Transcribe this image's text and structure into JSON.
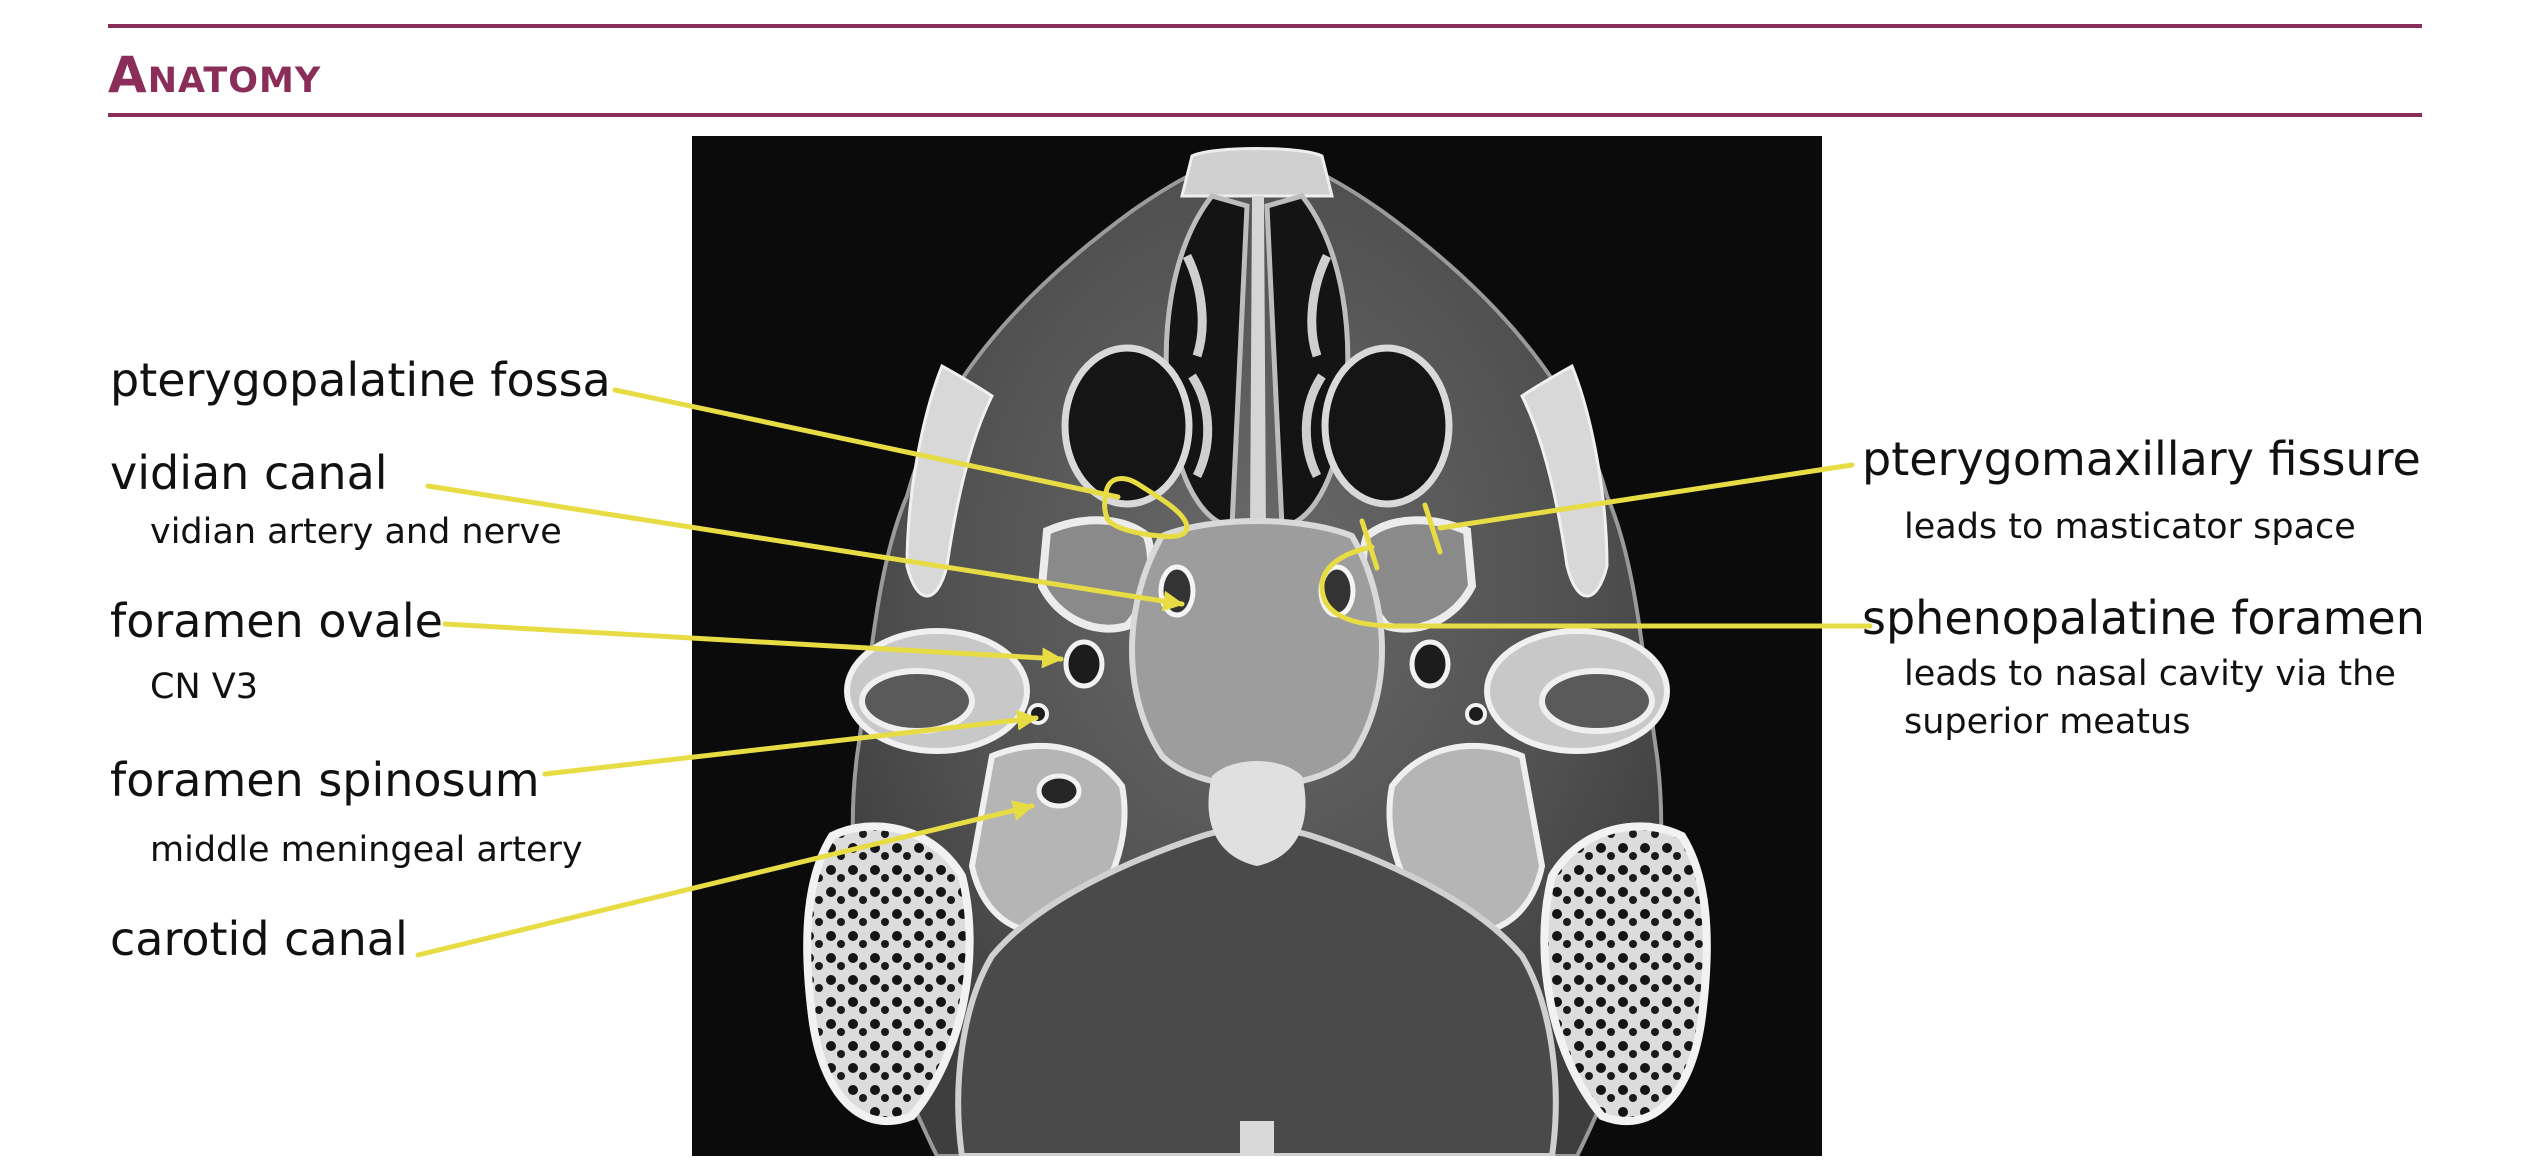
{
  "header": {
    "title": "Anatomy",
    "rule_color": "#8b2d59"
  },
  "image": {
    "annotation_color": "#e8dc45"
  },
  "left_labels": [
    {
      "title": "pterygopalatine fossa",
      "subtitle": ""
    },
    {
      "title": "vidian canal",
      "subtitle": "vidian artery and nerve"
    },
    {
      "title": "foramen ovale",
      "subtitle": "CN V3"
    },
    {
      "title": "foramen spinosum",
      "subtitle": "middle meningeal artery"
    },
    {
      "title": "carotid canal",
      "subtitle": ""
    }
  ],
  "right_labels": [
    {
      "title": "pterygomaxillary fissure",
      "subtitle_lines": [
        "leads to masticator space"
      ]
    },
    {
      "title": "sphenopalatine foramen",
      "subtitle_lines": [
        "leads to nasal cavity via the",
        "superior meatus"
      ]
    }
  ]
}
